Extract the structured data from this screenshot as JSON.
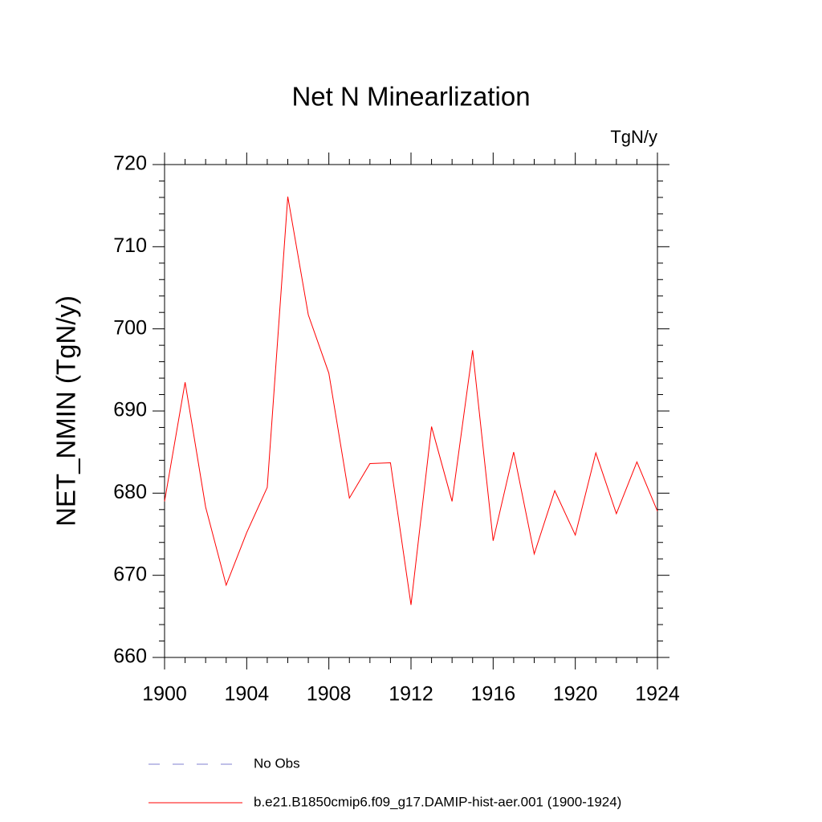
{
  "chart_data": {
    "type": "line",
    "title": "Net N Minearlization",
    "units": "TgN/y",
    "y_label": "NET_NMIN  (TgN/y)",
    "x": [
      1900,
      1901,
      1902,
      1903,
      1904,
      1905,
      1906,
      1907,
      1908,
      1909,
      1910,
      1911,
      1912,
      1913,
      1914,
      1915,
      1916,
      1917,
      1918,
      1919,
      1920,
      1921,
      1922,
      1923,
      1924
    ],
    "series": [
      {
        "name": "b.e21.B1850cmip6.f09_g17.DAMIP-hist-aer.001 (1900-1924)",
        "color": "#ff0000",
        "values": [
          679.0,
          693.5,
          678.3,
          668.8,
          675.2,
          680.7,
          716.1,
          701.7,
          694.6,
          679.4,
          683.6,
          683.7,
          666.4,
          688.1,
          679.0,
          697.4,
          674.2,
          685.0,
          672.6,
          680.3,
          674.9,
          684.9,
          677.5,
          683.8,
          677.8
        ]
      }
    ],
    "legend": [
      {
        "name": "No Obs",
        "color": "#8080d0",
        "style": "dashed"
      }
    ],
    "xlim": [
      1900,
      1924
    ],
    "xticks": [
      1900,
      1904,
      1908,
      1912,
      1916,
      1920,
      1924
    ],
    "xminorticks": [
      1901,
      1902,
      1903,
      1905,
      1906,
      1907,
      1909,
      1910,
      1911,
      1913,
      1914,
      1915,
      1917,
      1918,
      1919,
      1921,
      1922,
      1923
    ],
    "ylim": [
      660,
      720
    ],
    "yticks": [
      660,
      670,
      680,
      690,
      700,
      710,
      720
    ],
    "yminorticks": [
      662,
      664,
      666,
      668,
      672,
      674,
      676,
      678,
      682,
      684,
      686,
      688,
      692,
      694,
      696,
      698,
      702,
      704,
      706,
      708,
      712,
      714,
      716,
      718
    ]
  }
}
